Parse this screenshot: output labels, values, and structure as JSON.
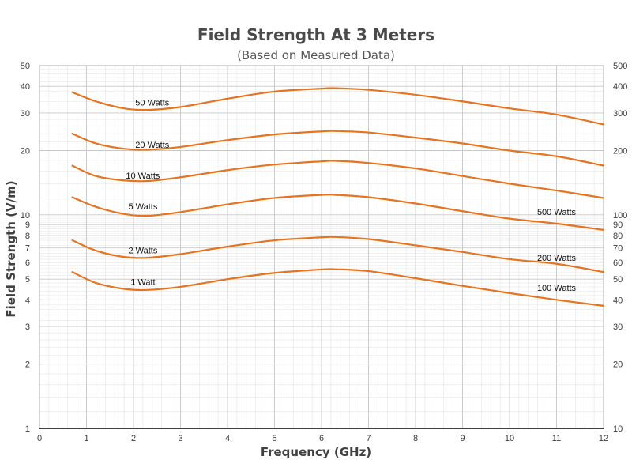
{
  "chart_data": {
    "type": "line",
    "title": "Field Strength At 3 Meters",
    "subtitle": "(Based on Measured Data)",
    "xlabel": "Frequency (GHz)",
    "ylabel": "Field Strength (V/m)",
    "xlim": [
      0,
      12
    ],
    "ylim": [
      1,
      50
    ],
    "yscale": "log",
    "grid": true,
    "x_ticks": [
      "0",
      "1",
      "2",
      "3",
      "4",
      "5",
      "6",
      "7",
      "8",
      "9",
      "10",
      "11",
      "12"
    ],
    "y_ticks_left": [
      {
        "value": 1,
        "label": "1"
      },
      {
        "value": 2,
        "label": "2"
      },
      {
        "value": 3,
        "label": "3"
      },
      {
        "value": 4,
        "label": "4"
      },
      {
        "value": 5,
        "label": "5"
      },
      {
        "value": 6,
        "label": "6"
      },
      {
        "value": 7,
        "label": "7"
      },
      {
        "value": 8,
        "label": "8"
      },
      {
        "value": 9,
        "label": "9"
      },
      {
        "value": 10,
        "label": "10"
      },
      {
        "value": 20,
        "label": "20"
      },
      {
        "value": 30,
        "label": "30"
      },
      {
        "value": 40,
        "label": "40"
      },
      {
        "value": 50,
        "label": "50"
      }
    ],
    "y_ticks_right": [
      {
        "value": 1,
        "label": "10"
      },
      {
        "value": 2,
        "label": "20"
      },
      {
        "value": 3,
        "label": "30"
      },
      {
        "value": 4,
        "label": "40"
      },
      {
        "value": 5,
        "label": "50"
      },
      {
        "value": 6,
        "label": "60"
      },
      {
        "value": 7,
        "label": "70"
      },
      {
        "value": 8,
        "label": "80"
      },
      {
        "value": 9,
        "label": "90"
      },
      {
        "value": 10,
        "label": "100"
      },
      {
        "value": 20,
        "label": "200"
      },
      {
        "value": 30,
        "label": "300"
      },
      {
        "value": 40,
        "label": "400"
      },
      {
        "value": 50,
        "label": "500"
      }
    ],
    "series_color": "#e8731f",
    "series": [
      {
        "name": "50 Watts",
        "label_pos": [
          2.4,
          32.5
        ],
        "x": [
          0.7,
          1.2,
          1.8,
          2.3,
          3,
          4,
          5,
          6,
          6.3,
          7,
          8,
          9,
          10,
          11,
          12
        ],
        "y": [
          37.5,
          34,
          31.5,
          31,
          32,
          35,
          37.8,
          39,
          39.2,
          38.5,
          36.5,
          34,
          31.5,
          29.5,
          26.5
        ]
      },
      {
        "name": "20 Watts",
        "label_pos": [
          2.4,
          20.6
        ],
        "x": [
          0.7,
          1.2,
          1.8,
          2.3,
          3,
          4,
          5,
          6,
          6.3,
          7,
          8,
          9,
          10,
          11,
          12
        ],
        "y": [
          24,
          21.6,
          20.4,
          20.2,
          20.8,
          22.4,
          23.8,
          24.6,
          24.7,
          24.3,
          23,
          21.6,
          20,
          18.8,
          17
        ]
      },
      {
        "name": "10 Watts",
        "label_pos": [
          2.2,
          14.8
        ],
        "x": [
          0.7,
          1.2,
          1.8,
          2.3,
          3,
          4,
          5,
          6,
          6.3,
          7,
          8,
          9,
          10,
          11,
          12
        ],
        "y": [
          17,
          15.2,
          14.5,
          14.4,
          15,
          16.2,
          17.2,
          17.8,
          17.9,
          17.5,
          16.5,
          15.2,
          14,
          13,
          12
        ]
      },
      {
        "name": "5 Watts",
        "label_pos": [
          2.2,
          10.6
        ],
        "x": [
          0.7,
          1.2,
          1.8,
          2.3,
          3,
          4,
          5,
          6,
          6.3,
          7,
          8,
          9,
          10,
          11,
          12
        ],
        "y": [
          12.1,
          10.9,
          10.1,
          9.9,
          10.3,
          11.2,
          12,
          12.4,
          12.4,
          12.1,
          11.3,
          10.4,
          9.6,
          9.1,
          8.5
        ]
      },
      {
        "name": "2 Watts",
        "label_pos": [
          2.2,
          6.6
        ],
        "x": [
          0.7,
          1.2,
          1.8,
          2.3,
          3,
          4,
          5,
          6,
          6.3,
          7,
          8,
          9,
          10,
          11,
          12
        ],
        "y": [
          7.6,
          6.8,
          6.35,
          6.3,
          6.55,
          7.1,
          7.6,
          7.85,
          7.88,
          7.7,
          7.2,
          6.7,
          6.2,
          5.9,
          5.4
        ]
      },
      {
        "name": "1 Watt",
        "label_pos": [
          2.2,
          4.7
        ],
        "x": [
          0.7,
          1.2,
          1.8,
          2.3,
          3,
          4,
          5,
          6,
          6.3,
          7,
          8,
          9,
          10,
          11,
          12
        ],
        "y": [
          5.4,
          4.8,
          4.5,
          4.45,
          4.6,
          5,
          5.35,
          5.55,
          5.56,
          5.45,
          5.05,
          4.65,
          4.3,
          4,
          3.75
        ]
      }
    ],
    "annotations": [
      {
        "text": "500 Watts",
        "x": 11.0,
        "y": 10.0
      },
      {
        "text": "200 Watts",
        "x": 11.0,
        "y": 6.1
      },
      {
        "text": "100 Watts",
        "x": 11.0,
        "y": 4.4
      }
    ]
  }
}
